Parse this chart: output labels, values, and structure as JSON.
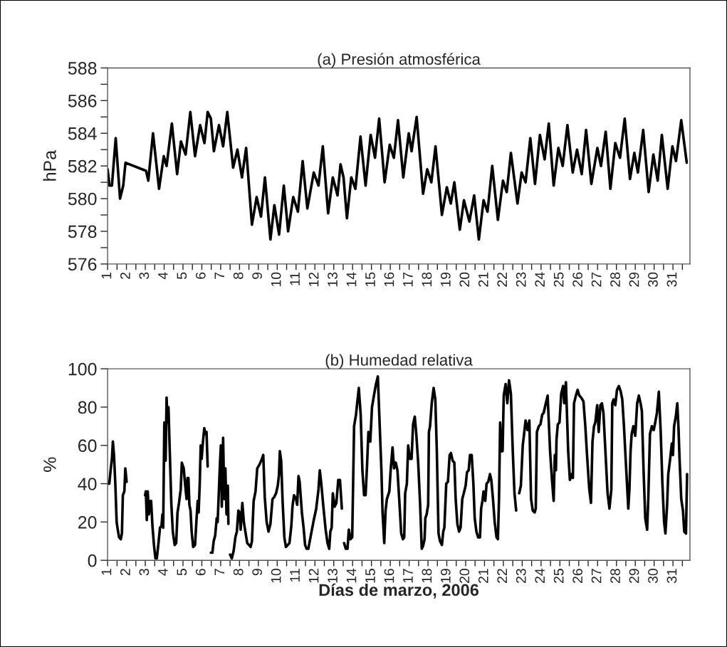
{
  "chart_data": [
    {
      "type": "line",
      "title": "(a) Presión atmosférica",
      "ylabel": "hPa",
      "xlim": [
        1,
        31.9
      ],
      "ylim": [
        576,
        588
      ],
      "xticks": [
        1,
        {
          "value": 1.5,
          "label": null
        },
        2,
        {
          "value": 2.5,
          "label": null
        },
        3,
        {
          "value": 3.5,
          "label": null
        },
        4,
        {
          "value": 4.5,
          "label": null
        },
        5,
        {
          "value": 5.5,
          "label": null
        },
        6,
        {
          "value": 6.5,
          "label": null
        },
        7,
        {
          "value": 7.5,
          "label": null
        },
        8,
        {
          "value": 8.5,
          "label": null
        },
        9,
        {
          "value": 9.5,
          "label": null
        },
        10,
        {
          "value": 10.5,
          "label": null
        },
        11,
        {
          "value": 11.5,
          "label": null
        },
        12,
        {
          "value": 12.5,
          "label": null
        },
        13,
        {
          "value": 13.5,
          "label": null
        },
        14,
        {
          "value": 14.5,
          "label": null
        },
        15,
        {
          "value": 15.5,
          "label": null
        },
        16,
        {
          "value": 16.5,
          "label": null
        },
        17,
        {
          "value": 17.5,
          "label": null
        },
        18,
        {
          "value": 18.5,
          "label": null
        },
        19,
        {
          "value": 19.5,
          "label": null
        },
        20,
        {
          "value": 20.5,
          "label": null
        },
        21,
        {
          "value": 21.5,
          "label": null
        },
        22,
        {
          "value": 22.5,
          "label": null
        },
        23,
        {
          "value": 23.5,
          "label": null
        },
        24,
        {
          "value": 24.5,
          "label": null
        },
        25,
        {
          "value": 25.5,
          "label": null
        },
        26,
        {
          "value": 26.5,
          "label": null
        },
        27,
        {
          "value": 27.5,
          "label": null
        },
        28,
        {
          "value": 28.5,
          "label": null
        },
        29,
        {
          "value": 29.5,
          "label": null
        },
        30,
        {
          "value": 30.5,
          "label": null
        },
        31,
        {
          "value": 31.5,
          "label": null
        }
      ],
      "yticks": [
        576,
        {
          "value": 577,
          "label": null
        },
        578,
        {
          "value": 579,
          "label": null
        },
        580,
        {
          "value": 581,
          "label": null
        },
        582,
        {
          "value": 583,
          "label": null
        },
        584,
        {
          "value": 585,
          "label": null
        },
        586,
        {
          "value": 587,
          "label": null
        },
        588
      ],
      "series": [
        {
          "color": "#000000",
          "x": [
            1.0,
            1.1,
            1.23,
            1.43,
            1.66,
            1.83,
            1.95,
            3.04,
            3.16,
            3.41,
            3.73,
            3.98,
            4.13,
            4.41,
            4.69,
            4.89,
            5.14,
            5.39,
            5.64,
            5.91,
            6.14,
            6.31,
            6.48,
            6.64,
            6.91,
            7.13,
            7.35,
            7.66,
            7.89,
            8.13,
            8.35,
            8.66,
            8.91,
            9.14,
            9.35,
            9.64,
            9.85,
            10.1,
            10.35,
            10.58,
            10.85,
            11.1,
            11.35,
            11.6,
            11.94,
            12.19,
            12.42,
            12.7,
            12.95,
            13.2,
            13.36,
            13.52,
            13.7,
            13.93,
            14.15,
            14.42,
            14.69,
            14.96,
            15.19,
            15.41,
            15.7,
            15.97,
            16.19,
            16.41,
            16.69,
            16.98,
            17.13,
            17.4,
            17.74,
            17.96,
            18.18,
            18.4,
            18.74,
            19.0,
            19.21,
            19.4,
            19.69,
            19.91,
            20.2,
            20.45,
            20.7,
            20.95,
            21.16,
            21.41,
            21.71,
            21.98,
            22.18,
            22.4,
            22.75,
            22.97,
            23.18,
            23.43,
            23.68,
            23.94,
            24.19,
            24.41,
            24.67,
            24.92,
            25.15,
            25.4,
            25.68,
            25.91,
            26.16,
            26.39,
            26.67,
            26.99,
            27.18,
            27.43,
            27.68,
            27.94,
            28.19,
            28.44,
            28.72,
            28.95,
            29.14,
            29.42,
            29.71,
            29.96,
            30.19,
            30.41,
            30.72,
            30.97,
            31.16,
            31.44,
            31.73
          ],
          "values": [
            581.8,
            580.8,
            580.8,
            583.7,
            580.0,
            580.8,
            582.2,
            581.7,
            581.1,
            584.0,
            580.6,
            582.6,
            582.0,
            584.6,
            581.5,
            583.5,
            582.7,
            585.3,
            582.6,
            584.5,
            583.4,
            585.3,
            584.9,
            582.9,
            584.5,
            583.2,
            585.3,
            581.9,
            583.0,
            581.3,
            583.1,
            578.4,
            580.1,
            578.9,
            581.3,
            577.5,
            579.6,
            577.8,
            580.8,
            578.0,
            580.1,
            579.2,
            582.3,
            579.4,
            581.6,
            580.8,
            583.2,
            579.1,
            581.3,
            580.2,
            582.1,
            581.3,
            578.8,
            581.3,
            580.6,
            583.8,
            580.8,
            583.9,
            582.5,
            584.9,
            581.0,
            583.3,
            582.5,
            584.8,
            581.3,
            584.0,
            582.9,
            585.0,
            580.3,
            581.8,
            581.0,
            583.2,
            579.0,
            580.7,
            579.7,
            581.0,
            578.1,
            579.9,
            578.6,
            580.2,
            577.5,
            579.9,
            579.2,
            582.0,
            578.7,
            581.1,
            580.4,
            582.8,
            579.7,
            581.6,
            581.0,
            583.7,
            580.9,
            583.9,
            582.4,
            584.6,
            580.8,
            583.1,
            582.0,
            584.5,
            581.6,
            583.0,
            581.5,
            584.2,
            580.9,
            583.1,
            582.0,
            584.1,
            580.6,
            583.4,
            582.5,
            584.9,
            581.2,
            582.8,
            581.6,
            584.2,
            580.4,
            582.7,
            581.1,
            583.9,
            580.6,
            583.2,
            582.3,
            584.8,
            582.2
          ]
        }
      ]
    },
    {
      "type": "line",
      "title": "(b) Humedad relativa",
      "ylabel": "%",
      "xlabel": "Días de marzo, 2006",
      "xlim": [
        1,
        31.9
      ],
      "ylim": [
        0,
        100
      ],
      "xticks": [
        1,
        {
          "value": 1.5,
          "label": null
        },
        2,
        {
          "value": 2.5,
          "label": null
        },
        3,
        {
          "value": 3.5,
          "label": null
        },
        4,
        {
          "value": 4.5,
          "label": null
        },
        5,
        {
          "value": 5.5,
          "label": null
        },
        6,
        {
          "value": 6.5,
          "label": null
        },
        7,
        {
          "value": 7.5,
          "label": null
        },
        8,
        {
          "value": 8.5,
          "label": null
        },
        9,
        {
          "value": 9.5,
          "label": null
        },
        10,
        {
          "value": 10.5,
          "label": null
        },
        11,
        {
          "value": 11.5,
          "label": null
        },
        12,
        {
          "value": 12.5,
          "label": null
        },
        13,
        {
          "value": 13.5,
          "label": null
        },
        14,
        {
          "value": 14.5,
          "label": null
        },
        15,
        {
          "value": 15.5,
          "label": null
        },
        16,
        {
          "value": 16.5,
          "label": null
        },
        17,
        {
          "value": 17.5,
          "label": null
        },
        18,
        {
          "value": 18.5,
          "label": null
        },
        19,
        {
          "value": 19.5,
          "label": null
        },
        20,
        {
          "value": 20.5,
          "label": null
        },
        21,
        {
          "value": 21.5,
          "label": null
        },
        22,
        {
          "value": 22.5,
          "label": null
        },
        23,
        {
          "value": 23.5,
          "label": null
        },
        24,
        {
          "value": 24.5,
          "label": null
        },
        25,
        {
          "value": 25.5,
          "label": null
        },
        26,
        {
          "value": 26.5,
          "label": null
        },
        27,
        {
          "value": 27.5,
          "label": null
        },
        28,
        {
          "value": 28.5,
          "label": null
        },
        29,
        {
          "value": 29.5,
          "label": null
        },
        30,
        {
          "value": 30.5,
          "label": null
        },
        31,
        {
          "value": 31.5,
          "label": null
        }
      ],
      "yticks": [
        0,
        20,
        40,
        60,
        80,
        100
      ],
      "series": [
        {
          "color": "#000000",
          "x": [
            1.0,
            1.09,
            1.16,
            1.23,
            1.28,
            1.34,
            1.41,
            1.48,
            1.54,
            1.61,
            1.7,
            1.76,
            1.81,
            1.89,
            1.94,
            1.98,
            2.01,
            2.5,
            2.99,
            3.03,
            3.08,
            3.13,
            3.19,
            3.25,
            3.31,
            3.38,
            3.46,
            3.54,
            3.61,
            3.69,
            3.78,
            3.86,
            3.91,
            3.95,
            4.01,
            4.08,
            4.13,
            4.18,
            4.23,
            4.29,
            4.38,
            4.46,
            4.56,
            4.64,
            4.71,
            4.79,
            4.88,
            4.94,
            5.04,
            5.11,
            5.19,
            5.24,
            5.29,
            5.34,
            5.4,
            5.46,
            5.54,
            5.64,
            5.71,
            5.78,
            5.83,
            5.89,
            5.94,
            5.99,
            6.06,
            6.13,
            6.19,
            6.25,
            6.31,
            6.4,
            6.48,
            6.56,
            6.63,
            6.71,
            6.79,
            6.84,
            6.9,
            6.96,
            7.01,
            7.06,
            7.13,
            7.19,
            7.25,
            7.31,
            7.38,
            7.41,
            7.45,
            7.5,
            7.59,
            7.69,
            7.78,
            7.86,
            7.94,
            8.01,
            8.06,
            8.15,
            8.23,
            8.31,
            8.41,
            8.5,
            8.59,
            8.66,
            8.75,
            8.85,
            8.94,
            9.06,
            9.19,
            9.26,
            9.34,
            9.44,
            9.54,
            9.64,
            9.75,
            9.84,
            9.94,
            10.03,
            10.09,
            10.14,
            10.21,
            10.29,
            10.38,
            10.46,
            10.56,
            10.65,
            10.75,
            10.81,
            10.89,
            11.0,
            11.06,
            11.13,
            11.19,
            11.31,
            11.4,
            11.48,
            11.56,
            11.65,
            11.94,
            12.07,
            12.19,
            12.26,
            12.34,
            12.44,
            12.57,
            12.67,
            12.76,
            12.82,
            12.89,
            12.95,
            13.05,
            13.14,
            13.24,
            13.33,
            13.43,
            13.49,
            13.55,
            13.64,
            13.73,
            13.8,
            13.89,
            13.98,
            14.08,
            14.18,
            14.33,
            14.43,
            14.52,
            14.61,
            14.69,
            14.76,
            14.84,
            14.94,
            15.03,
            15.15,
            15.24,
            15.34,
            15.44,
            15.53,
            15.59,
            15.68,
            15.75,
            15.82,
            15.95,
            16.02,
            16.12,
            16.2,
            16.29,
            16.38,
            16.48,
            16.58,
            16.67,
            16.74,
            16.79,
            16.88,
            16.95,
            17.04,
            17.13,
            17.21,
            17.3,
            17.38,
            17.48,
            17.58,
            17.67,
            17.74,
            17.82,
            17.86,
            17.93,
            18.01,
            18.05,
            18.11,
            18.2,
            18.3,
            18.39,
            18.47,
            18.56,
            18.64,
            18.74,
            18.81,
            18.87,
            18.97,
            19.06,
            19.15,
            19.22,
            19.31,
            19.4,
            19.47,
            19.56,
            19.65,
            19.73,
            19.82,
            19.9,
            20.0,
            20.07,
            20.16,
            20.23,
            20.32,
            20.41,
            20.48,
            20.57,
            20.66,
            20.76,
            20.82,
            20.89,
            20.95,
            21.04,
            21.11,
            21.2,
            21.29,
            21.36,
            21.45,
            21.54,
            21.64,
            21.71,
            21.77,
            21.83,
            21.89,
            21.96,
            22.02,
            22.12,
            22.21,
            22.3,
            22.4,
            22.5,
            22.59,
            22.68,
            22.76,
            22.84,
            22.93,
            23.03,
            23.09,
            23.18,
            23.28,
            23.38,
            23.47,
            23.56,
            23.66,
            23.72,
            23.78,
            23.88,
            23.97,
            24.06,
            24.14,
            24.23,
            24.35,
            24.48,
            24.58,
            24.67,
            24.73,
            24.79,
            24.82,
            24.89,
            24.98,
            25.07,
            25.17,
            25.23,
            25.32,
            25.44,
            25.53,
            25.63,
            25.69,
            25.75,
            25.85,
            25.94,
            26.03,
            26.13,
            26.25,
            26.35,
            26.44,
            26.56,
            26.65,
            26.73,
            26.81,
            26.88,
            26.98,
            27.06,
            27.15,
            27.23,
            27.31,
            27.4,
            27.53,
            27.63,
            27.73,
            27.78,
            27.85,
            27.94,
            28.03,
            28.13,
            28.23,
            28.31,
            28.4,
            28.5,
            28.63,
            28.69,
            28.75,
            28.81,
            28.9,
            29.0,
            29.1,
            29.19,
            29.28,
            29.35,
            29.44,
            29.53,
            29.63,
            29.69,
            29.78,
            29.88,
            29.98,
            30.06,
            30.15,
            30.25,
            30.35,
            30.44,
            30.53,
            30.6,
            30.69,
            30.75,
            30.84,
            30.94,
            31.0,
            31.06,
            31.15,
            31.23,
            31.29,
            31.35,
            31.44,
            31.53,
            31.6,
            31.69,
            31.75
          ],
          "values": [
            40,
            40,
            47,
            53,
            62,
            55,
            40,
            20,
            16,
            12,
            11,
            14,
            34,
            36,
            48,
            44,
            41,
            null,
            34,
            36,
            21,
            36,
            24,
            31,
            31,
            18,
            8,
            1,
            1,
            8,
            17,
            18,
            24,
            17,
            72,
            52,
            85,
            72,
            80,
            60,
            30,
            15,
            8,
            9,
            25,
            30,
            37,
            51,
            48,
            40,
            32,
            43,
            43,
            29,
            26,
            15,
            7,
            8,
            20,
            31,
            25,
            40,
            60,
            53,
            62,
            69,
            66,
            67,
            49,
            null,
            4,
            4,
            10,
            13,
            22,
            20,
            35,
            50,
            60,
            28,
            64,
            32,
            48,
            24,
            39,
            19,
            null,
            3,
            1,
            5,
            12,
            15,
            26,
            25,
            16,
            30,
            20,
            15,
            9,
            8,
            7,
            10,
            31,
            36,
            48,
            50,
            53,
            55,
            33,
            20,
            15,
            19,
            32,
            33,
            35,
            39,
            44,
            57,
            52,
            30,
            12,
            7,
            8,
            9,
            18,
            28,
            34,
            32,
            29,
            44,
            41,
            25,
            17,
            8,
            6,
            6,
            21,
            27,
            37,
            47,
            40,
            29,
            16,
            9,
            6,
            15,
            17,
            35,
            28,
            30,
            42,
            42,
            27,
            null,
            9,
            6,
            6,
            16,
            11,
            12,
            70,
            76,
            90,
            76,
            47,
            34,
            34,
            48,
            67,
            62,
            80,
            87,
            92,
            96,
            70,
            47,
            25,
            9,
            26,
            32,
            36,
            47,
            59,
            48,
            51,
            47,
            31,
            14,
            11,
            12,
            35,
            40,
            60,
            53,
            53,
            71,
            75,
            66,
            51,
            30,
            6,
            7.5,
            11,
            22,
            24,
            29,
            67,
            70,
            82,
            90,
            84,
            57,
            14,
            10,
            8,
            15,
            17,
            40,
            41,
            55,
            56,
            52,
            51,
            32,
            19,
            15,
            17,
            32,
            35,
            39,
            46,
            47,
            55,
            55,
            40,
            22,
            15,
            12,
            12,
            27,
            31,
            36,
            31,
            40,
            41,
            45,
            42,
            32,
            20,
            12,
            11,
            32,
            72,
            57,
            57,
            86,
            92,
            82,
            94,
            87,
            57,
            35,
            26,
            null,
            35,
            39,
            60,
            65,
            73,
            68,
            73,
            32,
            26,
            25,
            27,
            67,
            70,
            71,
            76,
            77,
            81,
            86,
            57,
            42,
            31,
            55,
            47,
            63,
            71,
            72,
            87,
            91,
            82,
            93,
            57,
            42,
            45,
            43,
            82,
            86,
            89,
            86,
            85,
            83,
            70,
            55,
            37,
            30,
            62,
            70,
            72,
            81,
            67,
            81,
            82,
            77,
            60,
            35,
            27,
            37,
            82,
            84,
            81,
            89,
            91,
            88,
            84,
            70,
            51,
            27,
            37,
            57,
            66,
            70,
            65,
            82,
            86,
            82,
            78,
            47,
            22,
            16,
            32,
            66,
            70,
            68,
            72,
            77,
            88,
            67,
            40,
            20,
            14,
            29,
            45,
            52,
            61,
            55,
            70,
            75,
            82,
            70,
            53,
            32,
            26,
            15,
            14,
            45
          ]
        }
      ]
    }
  ]
}
